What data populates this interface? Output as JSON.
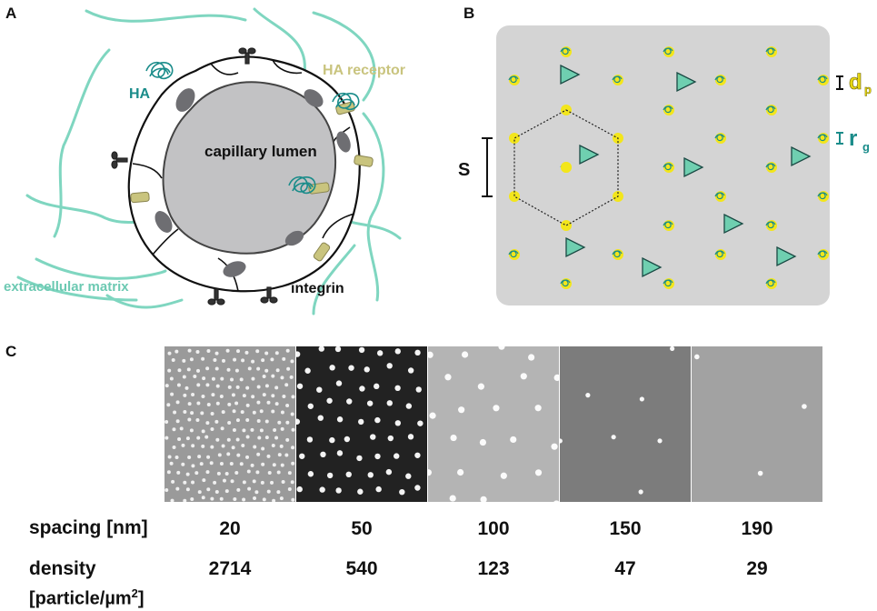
{
  "panels": {
    "a_label": "A",
    "b_label": "B",
    "c_label": "C"
  },
  "panel_a": {
    "capillary_lumen": "capillary lumen",
    "ha": "HA",
    "ha_receptor": "HA receptor",
    "extracellular_matrix": "extracellular matrix",
    "integrin": "integrin",
    "colors": {
      "matrix_fiber": "#7fd6c0",
      "ha_coil": "#1a8c8a",
      "receptor": "#c9c47e",
      "lumen": "#c2c2c4",
      "nucleus": "#6e6e72"
    }
  },
  "panel_b": {
    "s_label": "S",
    "dp_main": "d",
    "dp_sub": "p",
    "rg_main": "r",
    "rg_sub": "g",
    "colors": {
      "background": "#d4d4d4",
      "particle": "#f3e61b",
      "triangle": "#6fcfb0",
      "rg_text": "#1a8c8a"
    }
  },
  "panel_c": {
    "row_spacing_label": "spacing [nm]",
    "row_density_label_1": "density",
    "row_density_label_2": "[particle/µm",
    "row_density_sup": "2",
    "row_density_close": "]",
    "images": [
      {
        "spacing": "20",
        "density": "2714",
        "bg": "#9a9a9a"
      },
      {
        "spacing": "50",
        "density": "540",
        "bg": "#222222"
      },
      {
        "spacing": "100",
        "density": "123",
        "bg": "#b4b4b4"
      },
      {
        "spacing": "150",
        "density": "47",
        "bg": "#7c7c7c"
      },
      {
        "spacing": "190",
        "density": "29",
        "bg": "#a2a2a2"
      }
    ]
  }
}
